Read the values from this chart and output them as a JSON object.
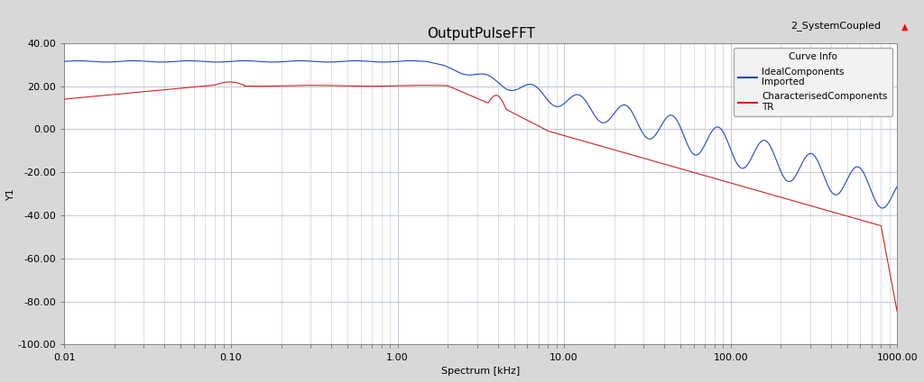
{
  "title": "OutputPulseFFT",
  "subtitle": "2_SystemCoupled",
  "xlabel": "Spectrum [kHz]",
  "ylabel": "Y1",
  "xlim": [
    0.01,
    1000.0
  ],
  "ylim": [
    -100,
    40
  ],
  "yticks": [
    -100,
    -80,
    -60,
    -40,
    -20,
    0,
    20,
    40
  ],
  "ytick_labels": [
    "-100.00",
    "-80.00",
    "-60.00",
    "-40.00",
    "-20.00",
    "0.00",
    "20.00",
    "40.00"
  ],
  "xtick_vals": [
    0.01,
    0.1,
    1.0,
    10.0,
    100.0,
    1000.0
  ],
  "xtick_labels": [
    "0.01",
    "0.10",
    "1.00",
    "10.00",
    "100.00",
    "1000.00"
  ],
  "fig_bg_color": "#d8d8d8",
  "plot_bg_color": "#ffffff",
  "grid_color": "#c0c8d4",
  "blue_color": "#2244cc",
  "red_color": "#cc2222",
  "legend_title": "Curve Info",
  "legend_label_blue_1": "IdealComponents",
  "legend_label_blue_2": "Imported",
  "legend_label_red_1": "CharacterisedComponents",
  "legend_label_red_2": "TR",
  "title_fontsize": 11,
  "axis_fontsize": 8,
  "tick_fontsize": 8,
  "legend_fontsize": 7.5
}
